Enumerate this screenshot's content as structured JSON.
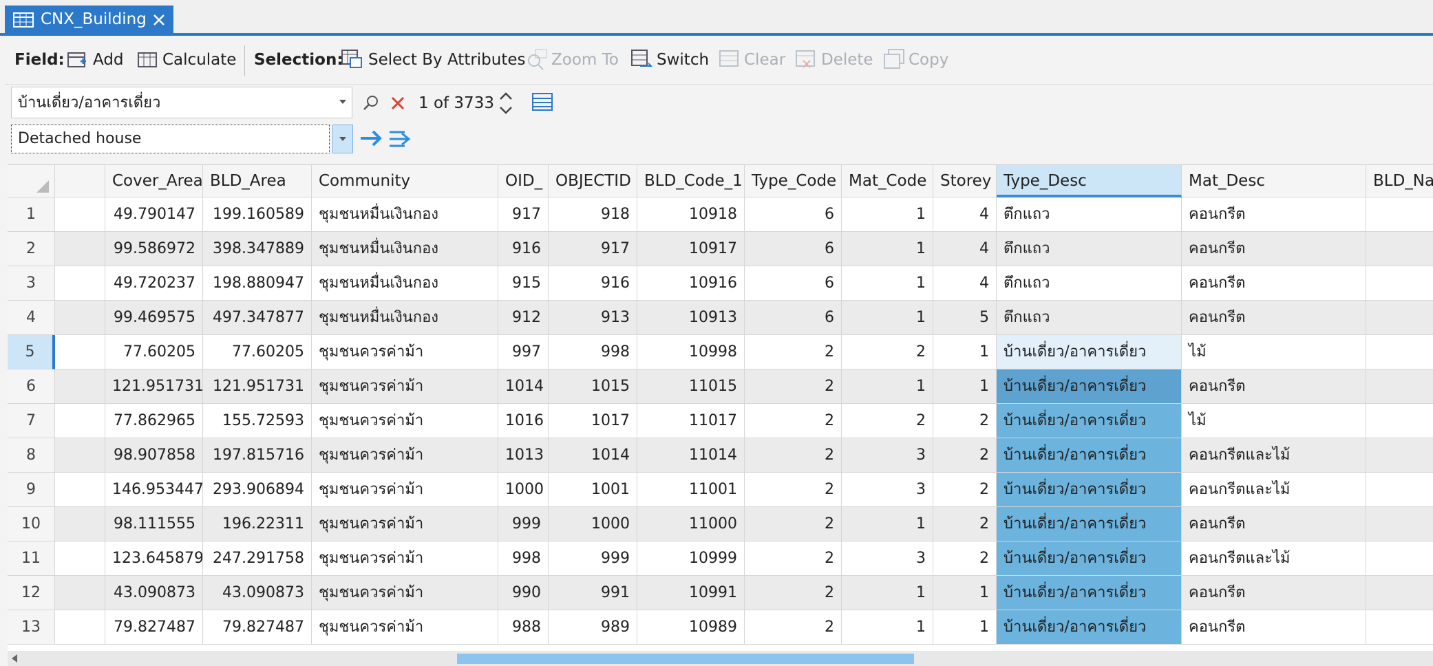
{
  "tab": {
    "title": "CNX_Building"
  },
  "toolbar": {
    "field_label": "Field:",
    "add": "Add",
    "calculate": "Calculate",
    "selection_label": "Selection:",
    "select_by_attributes": "Select By Attributes",
    "zoom_to": "Zoom To",
    "switch": "Switch",
    "clear": "Clear",
    "delete": "Delete",
    "copy": "Copy"
  },
  "find": {
    "text": "บ้านเดี่ยว/อาคารเดี่ยว",
    "count": "1 of 3733"
  },
  "replace": {
    "text": "Detached house"
  },
  "table": {
    "columns": [
      "Cover_Area",
      "BLD_Area",
      "Community",
      "OID_",
      "OBJECTID",
      "BLD_Code_1",
      "Type_Code",
      "Mat_Code",
      "Storey",
      "Type_Desc",
      "Mat_Desc",
      "BLD_Na"
    ],
    "rows": [
      {
        "number": "1",
        "cells": [
          "49.790147",
          "199.160589",
          "ชุมชนหมื่นเงินกอง",
          "917",
          "918",
          "10918",
          "6",
          "1",
          "4",
          "ตึกแถว",
          "คอนกรีต"
        ]
      },
      {
        "number": "2",
        "cells": [
          "99.586972",
          "398.347889",
          "ชุมชนหมื่นเงินกอง",
          "916",
          "917",
          "10917",
          "6",
          "1",
          "4",
          "ตึกแถว",
          "คอนกรีต"
        ]
      },
      {
        "number": "3",
        "cells": [
          "49.720237",
          "198.880947",
          "ชุมชนหมื่นเงินกอง",
          "915",
          "916",
          "10916",
          "6",
          "1",
          "4",
          "ตึกแถว",
          "คอนกรีต"
        ]
      },
      {
        "number": "4",
        "cells": [
          "99.469575",
          "497.347877",
          "ชุมชนหมื่นเงินกอง",
          "912",
          "913",
          "10913",
          "6",
          "1",
          "5",
          "ตึกแถว",
          "คอนกรีต"
        ]
      },
      {
        "number": "5",
        "cells": [
          "77.60205",
          "77.60205",
          "ชุมชนควรค่าม้า",
          "997",
          "998",
          "10998",
          "2",
          "2",
          "1",
          "บ้านเดี่ยว/อาคารเดี่ยว",
          "ไม้"
        ]
      },
      {
        "number": "6",
        "cells": [
          "121.951731",
          "121.951731",
          "ชุมชนควรค่าม้า",
          "1014",
          "1015",
          "11015",
          "2",
          "1",
          "1",
          "บ้านเดี่ยว/อาคารเดี่ยว",
          "คอนกรีต"
        ]
      },
      {
        "number": "7",
        "cells": [
          "77.862965",
          "155.72593",
          "ชุมชนควรค่าม้า",
          "1016",
          "1017",
          "11017",
          "2",
          "2",
          "2",
          "บ้านเดี่ยว/อาคารเดี่ยว",
          "ไม้"
        ]
      },
      {
        "number": "8",
        "cells": [
          "98.907858",
          "197.815716",
          "ชุมชนควรค่าม้า",
          "1013",
          "1014",
          "11014",
          "2",
          "3",
          "2",
          "บ้านเดี่ยว/อาคารเดี่ยว",
          "คอนกรีตและไม้"
        ]
      },
      {
        "number": "9",
        "cells": [
          "146.953447",
          "293.906894",
          "ชุมชนควรค่าม้า",
          "1000",
          "1001",
          "11001",
          "2",
          "3",
          "2",
          "บ้านเดี่ยว/อาคารเดี่ยว",
          "คอนกรีตและไม้"
        ]
      },
      {
        "number": "10",
        "cells": [
          "98.111555",
          "196.22311",
          "ชุมชนควรค่าม้า",
          "999",
          "1000",
          "11000",
          "2",
          "1",
          "2",
          "บ้านเดี่ยว/อาคารเดี่ยว",
          "คอนกรีต"
        ]
      },
      {
        "number": "11",
        "cells": [
          "123.645879",
          "247.291758",
          "ชุมชนควรค่าม้า",
          "998",
          "999",
          "10999",
          "2",
          "3",
          "2",
          "บ้านเดี่ยว/อาคารเดี่ยว",
          "คอนกรีตและไม้"
        ]
      },
      {
        "number": "12",
        "cells": [
          "43.090873",
          "43.090873",
          "ชุมชนควรค่าม้า",
          "990",
          "991",
          "10991",
          "2",
          "1",
          "1",
          "บ้านเดี่ยว/อาคารเดี่ยว",
          "คอนกรีต"
        ]
      },
      {
        "number": "13",
        "cells": [
          "79.827487",
          "79.827487",
          "ชุมชนควรค่าม้า",
          "988",
          "989",
          "10989",
          "2",
          "1",
          "1",
          "บ้านเดี่ยว/อาคารเดี่ยว",
          "คอนกรีต"
        ]
      }
    ]
  }
}
